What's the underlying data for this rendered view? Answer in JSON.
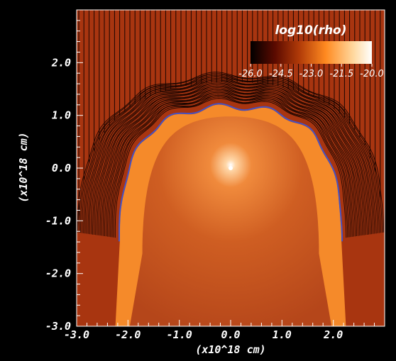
{
  "chart_data": {
    "type": "heatmap",
    "title": "log10(rho)",
    "xlabel": "(x10^18 cm)",
    "ylabel": "(x10^18 cm)",
    "xlim": [
      -3.0,
      3.0
    ],
    "ylim": [
      -3.0,
      3.0
    ],
    "x_tick_labels": [
      "-3.0",
      "-2.0",
      "-1.0",
      "0.0",
      "1.0",
      "2.0"
    ],
    "y_tick_labels": [
      "-3.0",
      "-2.0",
      "-1.0",
      "0.0",
      "1.0",
      "2.0"
    ],
    "colorbar": {
      "label": "log10(rho)",
      "range": [
        -26.0,
        -20.0
      ],
      "tick_labels": [
        "-26.0",
        "-24.5",
        "-23.0",
        "-21.5",
        "-20.0"
      ],
      "placement": "top-right",
      "colors": [
        "#000000",
        "#5a0a00",
        "#b03a08",
        "#ff8a20",
        "#ffd9a0",
        "#ffffff"
      ]
    },
    "regions": {
      "ambient_color": "#a83510",
      "shell_color": "#f58a2a",
      "cavity_color": "#c45a1e",
      "point_source": {
        "x": 0.0,
        "y": 0.0,
        "color": "#ffffff"
      }
    },
    "field_line_color": "#1a0500",
    "front_highlight_color": "#3a55d8"
  }
}
